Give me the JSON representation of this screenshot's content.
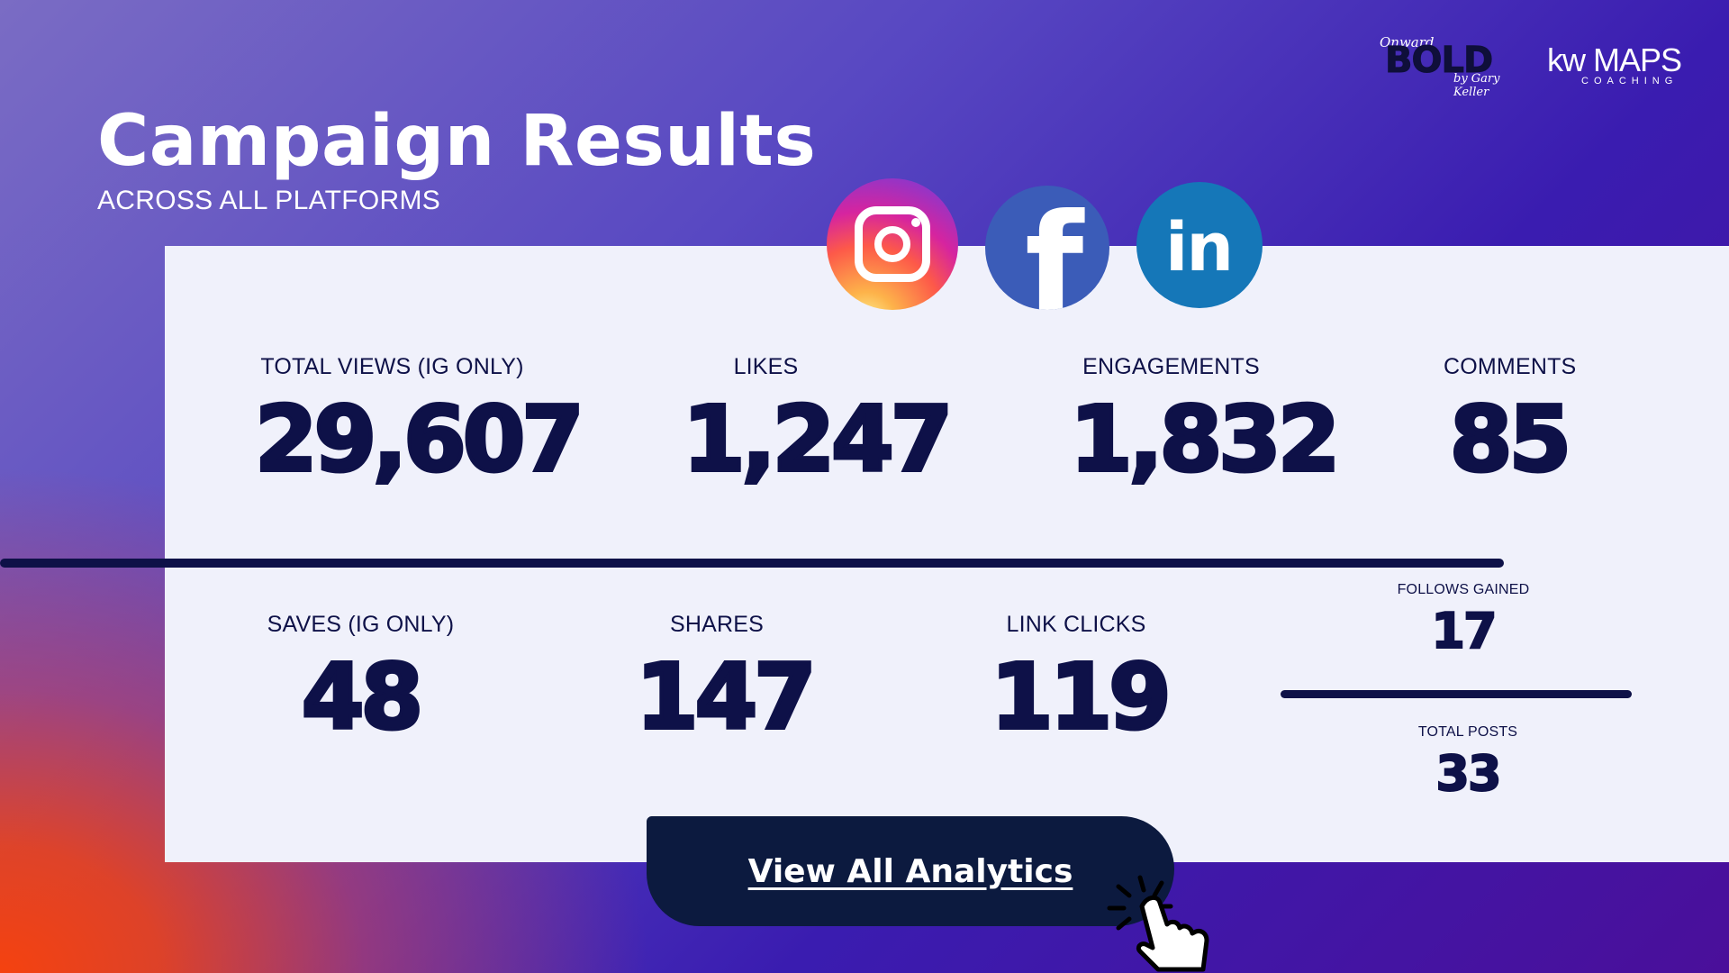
{
  "brand": {
    "bold_script": "Onward",
    "bold_word": "BOLD",
    "bold_byline": "by Gary Keller",
    "kw_logo": "kw MAPS",
    "kw_sub": "COACHING"
  },
  "header": {
    "title": "Campaign Results",
    "subtitle": "ACROSS ALL PLATFORMS"
  },
  "social_icons": [
    "instagram-icon",
    "facebook-icon",
    "linkedin-icon"
  ],
  "stats_row1": [
    {
      "label": "TOTAL VIEWS (IG ONLY)",
      "value": "29,607"
    },
    {
      "label": "LIKES",
      "value": "1,247"
    },
    {
      "label": "ENGAGEMENTS",
      "value": "1,832"
    },
    {
      "label": "COMMENTS",
      "value": "85"
    }
  ],
  "stats_row2": [
    {
      "label": "SAVES (IG ONLY)",
      "value": "48"
    },
    {
      "label": "SHARES",
      "value": "147"
    },
    {
      "label": "LINK CLICKS",
      "value": "119"
    }
  ],
  "side_stats": [
    {
      "label": "FOLLOWS GAINED",
      "value": "17"
    },
    {
      "label": "TOTAL POSTS",
      "value": "33"
    }
  ],
  "cta": {
    "label": "View All Analytics"
  },
  "colors": {
    "navy": "#0e1148",
    "panel": "#f0f1fb",
    "purple": "#3f1fb0",
    "orange": "#f5420f",
    "facebook": "#3b5cb8",
    "linkedin": "#1577b8"
  }
}
